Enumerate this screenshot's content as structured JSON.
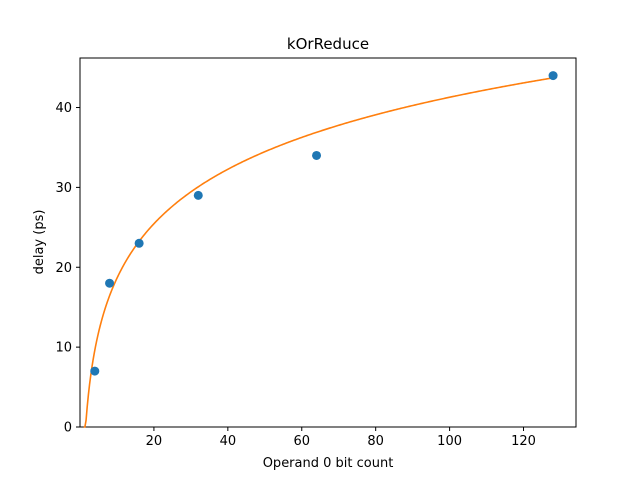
{
  "chart_data": {
    "type": "scatter",
    "title": "kOrReduce",
    "xlabel": "Operand 0 bit count",
    "ylabel": "delay (ps)",
    "xlim": [
      0,
      134.2
    ],
    "ylim": [
      0,
      46.2
    ],
    "xticks": [
      20,
      40,
      60,
      80,
      100,
      120
    ],
    "yticks": [
      0,
      10,
      20,
      30,
      40
    ],
    "grid": false,
    "series": [
      {
        "kind": "scatter",
        "color": "#1f77b4",
        "x": [
          4,
          8,
          16,
          32,
          64,
          128
        ],
        "y": [
          7,
          18,
          23,
          29,
          34,
          44
        ]
      },
      {
        "kind": "fit-line",
        "color": "#ff7f0e",
        "model": "a + b*ln(x)",
        "a": -4.03,
        "b": 9.84,
        "xrange": [
          1,
          128
        ]
      }
    ]
  }
}
